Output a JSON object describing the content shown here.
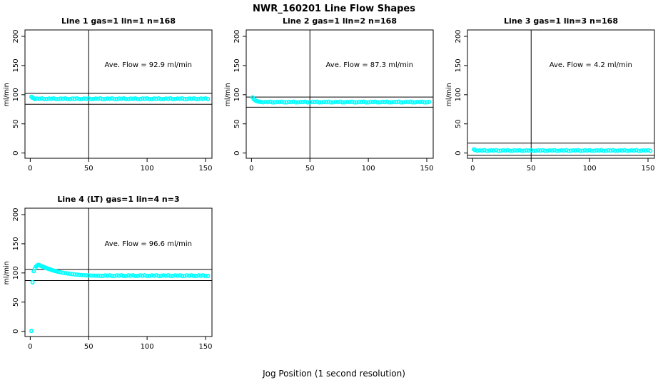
{
  "figure": {
    "title": "NWR_160201  Line Flow Shapes",
    "xlabel": "Jog Position (1 second resolution)",
    "bg_color": "#ffffff",
    "point_color": "#00ffff",
    "axis_color": "#000000"
  },
  "chart_data": [
    {
      "type": "scatter",
      "title": "Line 1 gas=1 lin=1 n=168",
      "ylabel": "ml/min",
      "annotation": "Ave. Flow =  92.9  ml/min",
      "ave_flow_ml_min": 92.9,
      "xlim": [
        -4.5,
        155.5
      ],
      "ylim": [
        -9,
        211
      ],
      "xticks": [
        0,
        50,
        100,
        150
      ],
      "yticks": [
        0,
        50,
        100,
        150,
        200
      ],
      "vline_x": 50,
      "hlines": [
        102.2,
        83.6
      ],
      "annotation_xy": [
        101,
        151
      ],
      "points_head": [
        [
          1,
          96.3
        ],
        [
          2,
          94.6
        ],
        [
          3,
          93.8
        ]
      ],
      "points_steady": {
        "x_from": 4,
        "x_to": 152,
        "x_step": 2,
        "y_cycle": [
          92.6,
          93.3,
          92.9,
          93.5,
          92.4
        ]
      }
    },
    {
      "type": "scatter",
      "title": "Line 2 gas=1 lin=2 n=168",
      "ylabel": "ml/min",
      "annotation": "Ave. Flow =  87.3  ml/min",
      "ave_flow_ml_min": 87.3,
      "xlim": [
        -4.5,
        155.5
      ],
      "ylim": [
        -9,
        211
      ],
      "xticks": [
        0,
        50,
        100,
        150
      ],
      "yticks": [
        0,
        50,
        100,
        150,
        200
      ],
      "vline_x": 50,
      "hlines": [
        96.0,
        78.6
      ],
      "annotation_xy": [
        101,
        151
      ],
      "points_head": [
        [
          1,
          95.2
        ],
        [
          2,
          92.3
        ],
        [
          3,
          90.6
        ],
        [
          4,
          89.4
        ],
        [
          5,
          88.7
        ],
        [
          6,
          88.2
        ],
        [
          7,
          87.9
        ],
        [
          8,
          87.6
        ]
      ],
      "points_steady": {
        "x_from": 10,
        "x_to": 152,
        "x_step": 2,
        "y_cycle": [
          87.0,
          87.7,
          87.3,
          87.9,
          86.8
        ]
      }
    },
    {
      "type": "scatter",
      "title": "Line 3 gas=1 lin=3 n=168",
      "ylabel": "ml/min",
      "annotation": "Ave. Flow =  4.2  ml/min",
      "ave_flow_ml_min": 4.2,
      "xlim": [
        -4.5,
        155.5
      ],
      "ylim": [
        -9,
        211
      ],
      "xticks": [
        0,
        50,
        100,
        150
      ],
      "yticks": [
        0,
        50,
        100,
        150,
        200
      ],
      "vline_x": 50,
      "hlines": [
        17.0,
        -4.0
      ],
      "annotation_xy": [
        101,
        151
      ],
      "points_head": [
        [
          1,
          6.3
        ],
        [
          2,
          5.1
        ]
      ],
      "points_steady": {
        "x_from": 4,
        "x_to": 152,
        "x_step": 2,
        "y_cycle": [
          4.0,
          4.6,
          4.2,
          4.8,
          3.8
        ]
      }
    },
    {
      "type": "scatter",
      "title": "Line 4 (LT) gas=1 lin=4 n=3",
      "ylabel": "ml/min",
      "annotation": "Ave. Flow =  96.6  ml/min",
      "ave_flow_ml_min": 96.6,
      "xlim": [
        -4.5,
        155.5
      ],
      "ylim": [
        -9,
        211
      ],
      "xticks": [
        0,
        50,
        100,
        150
      ],
      "yticks": [
        0,
        50,
        100,
        150,
        200
      ],
      "vline_x": 50,
      "hlines": [
        106.0,
        87.0
      ],
      "annotation_xy": [
        101,
        150
      ],
      "points_head": [
        [
          1,
          0.5
        ],
        [
          2,
          84
        ],
        [
          3,
          103
        ],
        [
          4,
          108
        ],
        [
          5,
          111
        ],
        [
          6,
          113
        ],
        [
          7,
          114
        ],
        [
          8,
          113.2
        ],
        [
          9,
          112.3
        ],
        [
          10,
          111.4
        ],
        [
          11,
          110.6
        ],
        [
          12,
          109.8
        ],
        [
          13,
          109
        ],
        [
          14,
          108.2
        ],
        [
          15,
          107.4
        ],
        [
          16,
          106.7
        ],
        [
          17,
          106
        ],
        [
          18,
          105.3
        ],
        [
          19,
          104.7
        ],
        [
          20,
          104.1
        ],
        [
          21,
          103.5
        ],
        [
          22,
          103
        ],
        [
          23,
          102.5
        ],
        [
          24,
          102
        ],
        [
          26,
          101.1
        ],
        [
          28,
          100.3
        ],
        [
          30,
          99.6
        ],
        [
          32,
          99
        ],
        [
          34,
          98.4
        ],
        [
          36,
          97.9
        ],
        [
          38,
          97.5
        ],
        [
          40,
          97.1
        ],
        [
          42,
          96.7
        ],
        [
          44,
          96.4
        ],
        [
          46,
          96.1
        ],
        [
          48,
          95.9
        ],
        [
          50,
          95.7
        ],
        [
          52,
          95.5
        ],
        [
          54,
          95.4
        ],
        [
          56,
          95.3
        ],
        [
          58,
          95.2
        ],
        [
          60,
          95.1
        ]
      ],
      "points_steady": {
        "x_from": 62,
        "x_to": 152,
        "x_step": 2,
        "y_cycle": [
          95.0,
          95.7,
          95.2,
          95.9,
          94.8
        ]
      }
    }
  ]
}
